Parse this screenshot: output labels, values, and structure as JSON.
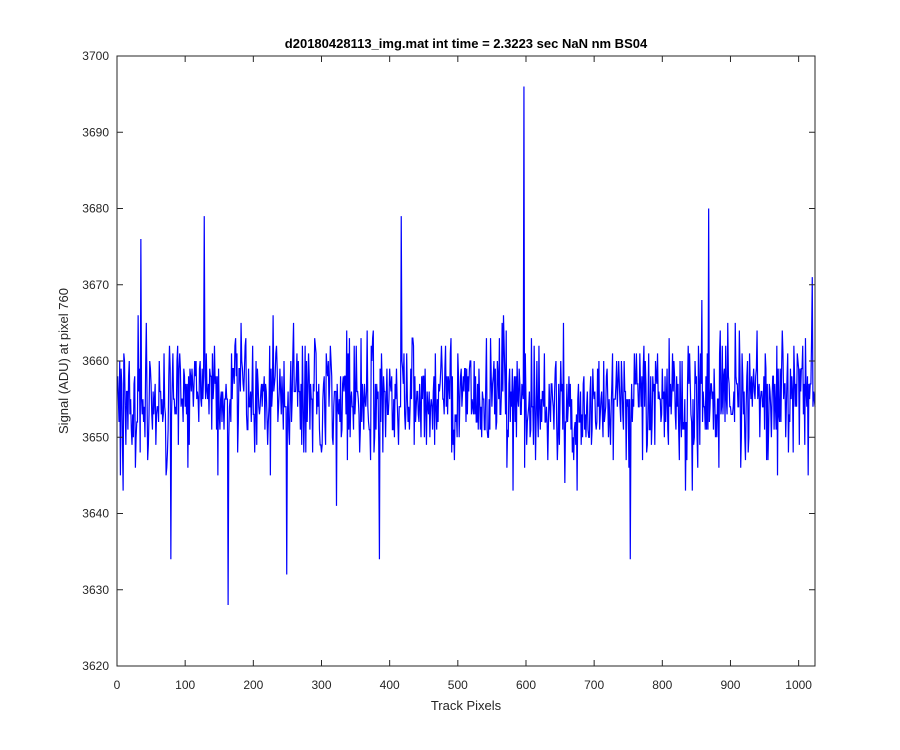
{
  "chart_data": {
    "type": "line",
    "title": "d20180428113_img.mat int time = 2.3223 sec  NaN nm BS04",
    "xlabel": "Track Pixels",
    "ylabel": "Signal (ADU) at pixel 760",
    "xlim": [
      0,
      1024
    ],
    "ylim": [
      3620,
      3700
    ],
    "xticks": [
      0,
      100,
      200,
      300,
      400,
      500,
      600,
      700,
      800,
      900,
      1000
    ],
    "yticks": [
      3620,
      3630,
      3640,
      3650,
      3660,
      3670,
      3680,
      3690,
      3700
    ],
    "grid": false,
    "legend": "none",
    "box": true,
    "series": [
      {
        "color": "#0000ff",
        "n_points": 1024,
        "x_start": 1,
        "x_end": 1024,
        "mean": 3655,
        "typical_range": [
          3640,
          3670
        ],
        "notable_points": [
          {
            "x": 597,
            "y": 3696
          },
          {
            "x": 163,
            "y": 3628
          },
          {
            "x": 249,
            "y": 3632
          },
          {
            "x": 79,
            "y": 3634
          },
          {
            "x": 385,
            "y": 3634
          },
          {
            "x": 753,
            "y": 3634
          },
          {
            "x": 128,
            "y": 3679
          },
          {
            "x": 417,
            "y": 3679
          },
          {
            "x": 868,
            "y": 3680
          },
          {
            "x": 35,
            "y": 3676
          },
          {
            "x": 1020,
            "y": 3671
          }
        ]
      }
    ]
  }
}
